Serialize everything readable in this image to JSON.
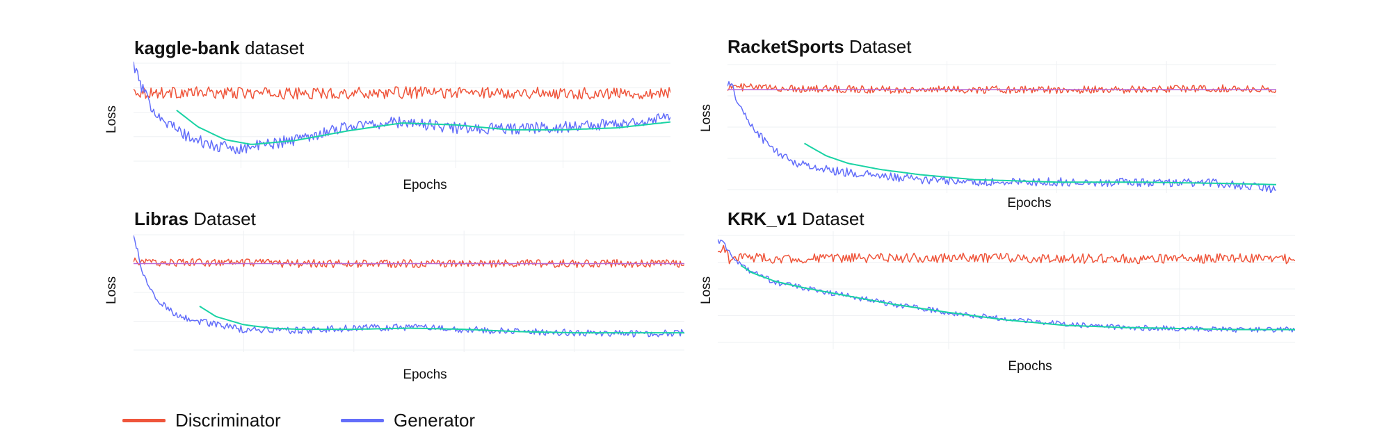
{
  "colors": {
    "discriminator": "#ef553b",
    "generator": "#636efa",
    "trend": "#19d3a4",
    "grid": "#eef0f3"
  },
  "legend": {
    "items": [
      {
        "label": "Discriminator",
        "color": "#ef553b"
      },
      {
        "label": "Generator",
        "color": "#636efa"
      }
    ]
  },
  "chart_data": [
    {
      "type": "line",
      "title_bold": "kaggle-bank",
      "title_rest": " dataset",
      "xlabel": "Epochs",
      "ylabel": "Loss",
      "grid": true,
      "xlim": [
        0,
        1
      ],
      "ylim": [
        0,
        1
      ],
      "series": [
        {
          "name": "Discriminator",
          "noise": 0.06,
          "x": [
            0,
            0.02,
            0.1,
            0.3,
            0.5,
            0.7,
            0.9,
            1.0
          ],
          "y": [
            0.72,
            0.7,
            0.7,
            0.69,
            0.7,
            0.7,
            0.69,
            0.7
          ]
        },
        {
          "name": "Generator",
          "noise": 0.06,
          "x": [
            0,
            0.01,
            0.03,
            0.06,
            0.1,
            0.15,
            0.2,
            0.3,
            0.4,
            0.5,
            0.6,
            0.7,
            0.8,
            0.9,
            1.0
          ],
          "y": [
            1.0,
            0.82,
            0.58,
            0.4,
            0.25,
            0.15,
            0.13,
            0.22,
            0.36,
            0.4,
            0.34,
            0.33,
            0.35,
            0.38,
            0.45
          ]
        }
      ],
      "trend": {
        "x": [
          0.08,
          0.12,
          0.17,
          0.22,
          0.3,
          0.4,
          0.5,
          0.6,
          0.7,
          0.8,
          0.9,
          1.0
        ],
        "y": [
          0.52,
          0.35,
          0.22,
          0.17,
          0.21,
          0.31,
          0.39,
          0.37,
          0.32,
          0.32,
          0.34,
          0.4
        ]
      }
    },
    {
      "type": "line",
      "title_bold": "RacketSports",
      "title_rest": " Dataset",
      "xlabel": "Epochs",
      "ylabel": "Loss",
      "grid": true,
      "xlim": [
        0,
        1
      ],
      "ylim": [
        0,
        1
      ],
      "series": [
        {
          "name": "Discriminator",
          "noise": 0.03,
          "x": [
            0,
            0.02,
            0.1,
            0.3,
            0.5,
            0.7,
            0.9,
            1.0
          ],
          "y": [
            0.82,
            0.82,
            0.81,
            0.8,
            0.8,
            0.8,
            0.81,
            0.8
          ]
        },
        {
          "name": "Generator",
          "noise": 0.035,
          "x": [
            0,
            0.01,
            0.03,
            0.05,
            0.08,
            0.12,
            0.18,
            0.25,
            0.35,
            0.45,
            0.6,
            0.75,
            0.9,
            1.0
          ],
          "y": [
            0.86,
            0.8,
            0.6,
            0.48,
            0.33,
            0.22,
            0.16,
            0.12,
            0.08,
            0.06,
            0.06,
            0.06,
            0.05,
            0.0
          ]
        },
        {
          "name": "Discriminator",
          "noise": 0.0,
          "overlay": "#b869d6",
          "x": [
            0,
            1
          ],
          "y": [
            0.8,
            0.8
          ]
        }
      ],
      "trend": {
        "x": [
          0.14,
          0.18,
          0.22,
          0.28,
          0.35,
          0.45,
          0.6,
          0.75,
          0.9,
          1.0
        ],
        "y": [
          0.37,
          0.27,
          0.21,
          0.16,
          0.12,
          0.08,
          0.06,
          0.06,
          0.05,
          0.04
        ]
      }
    },
    {
      "type": "line",
      "title_bold": "Libras",
      "title_rest": " Dataset",
      "xlabel": "Epochs",
      "ylabel": "Loss",
      "grid": true,
      "xlim": [
        0,
        1
      ],
      "ylim": [
        0,
        1
      ],
      "series": [
        {
          "name": "Discriminator",
          "noise": 0.035,
          "x": [
            0,
            0.02,
            0.1,
            0.3,
            0.5,
            0.7,
            0.9,
            1.0
          ],
          "y": [
            0.77,
            0.76,
            0.76,
            0.75,
            0.75,
            0.75,
            0.75,
            0.75
          ]
        },
        {
          "name": "Generator",
          "noise": 0.03,
          "x": [
            0,
            0.01,
            0.02,
            0.04,
            0.07,
            0.1,
            0.15,
            0.2,
            0.3,
            0.4,
            0.5,
            0.6,
            0.7,
            0.8,
            0.9,
            1.0
          ],
          "y": [
            1.0,
            0.8,
            0.62,
            0.45,
            0.33,
            0.27,
            0.22,
            0.18,
            0.17,
            0.19,
            0.2,
            0.18,
            0.16,
            0.15,
            0.14,
            0.15
          ]
        },
        {
          "name": "Discriminator",
          "noise": 0.0,
          "overlay": "#b869d6",
          "x": [
            0,
            1
          ],
          "y": [
            0.75,
            0.75
          ]
        }
      ],
      "trend": {
        "x": [
          0.12,
          0.15,
          0.2,
          0.25,
          0.3,
          0.4,
          0.5,
          0.6,
          0.7,
          0.8,
          0.9,
          1.0
        ],
        "y": [
          0.38,
          0.29,
          0.22,
          0.19,
          0.18,
          0.18,
          0.19,
          0.18,
          0.16,
          0.15,
          0.15,
          0.15
        ]
      }
    },
    {
      "type": "line",
      "title_bold": "KRK_v1",
      "title_rest": " Dataset",
      "xlabel": "Epochs",
      "ylabel": "Loss",
      "grid": true,
      "xlim": [
        0,
        1
      ],
      "ylim": [
        0,
        1
      ],
      "series": [
        {
          "name": "Discriminator",
          "noise": 0.045,
          "x": [
            0,
            0.01,
            0.02,
            0.05,
            0.1,
            0.3,
            0.5,
            0.7,
            0.9,
            1.0
          ],
          "y": [
            0.82,
            0.9,
            0.78,
            0.8,
            0.78,
            0.79,
            0.79,
            0.78,
            0.79,
            0.78
          ]
        },
        {
          "name": "Generator",
          "noise": 0.025,
          "x": [
            0,
            0.01,
            0.02,
            0.03,
            0.05,
            0.1,
            0.2,
            0.3,
            0.4,
            0.5,
            0.6,
            0.7,
            0.8,
            0.9,
            1.0
          ],
          "y": [
            0.95,
            0.92,
            0.85,
            0.78,
            0.68,
            0.56,
            0.46,
            0.36,
            0.28,
            0.22,
            0.17,
            0.14,
            0.13,
            0.12,
            0.12
          ]
        }
      ],
      "trend": {
        "x": [
          0.04,
          0.06,
          0.1,
          0.15,
          0.2,
          0.3,
          0.4,
          0.5,
          0.6,
          0.7,
          0.8,
          0.9,
          1.0
        ],
        "y": [
          0.72,
          0.65,
          0.57,
          0.51,
          0.46,
          0.36,
          0.28,
          0.21,
          0.16,
          0.14,
          0.13,
          0.12,
          0.12
        ]
      }
    }
  ]
}
